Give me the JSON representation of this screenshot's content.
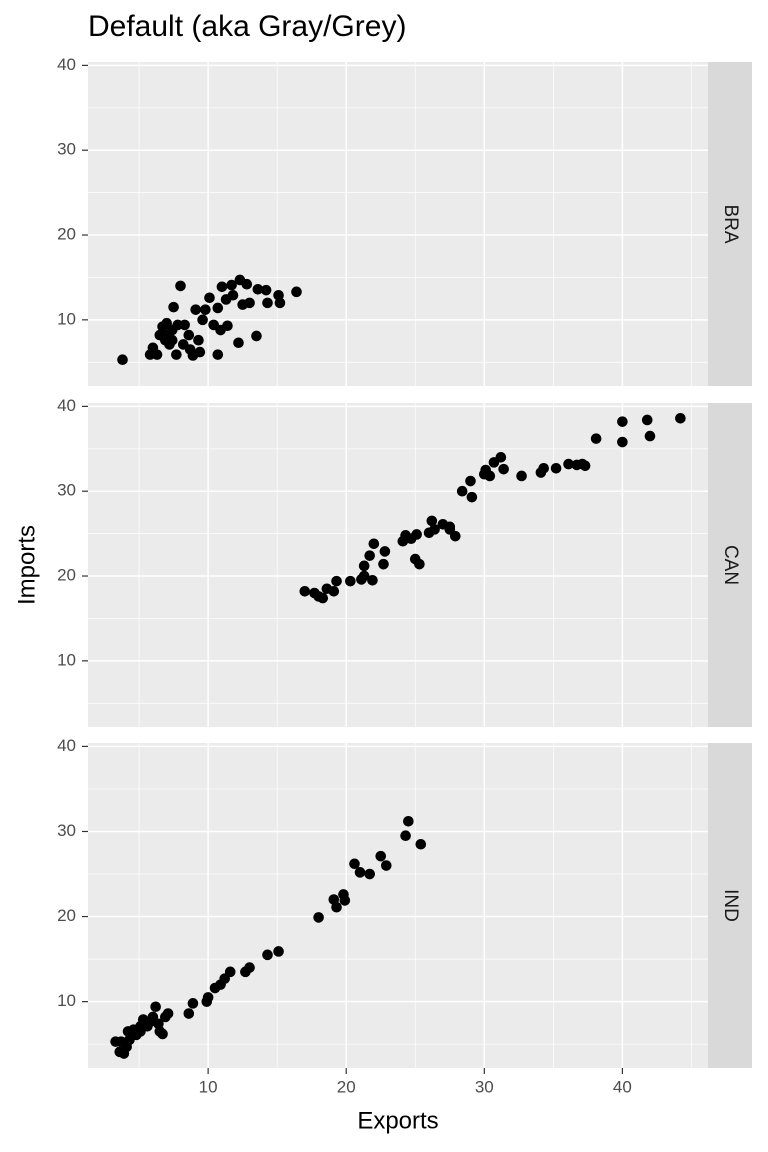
{
  "chart_data": {
    "type": "scatter",
    "title": "Default (aka Gray/Grey)",
    "xlabel": "Exports",
    "ylabel": "Imports",
    "xlim": [
      1.3,
      46.2
    ],
    "xticks": [
      10,
      20,
      30,
      40
    ],
    "ylim": [
      2.2,
      40.4
    ],
    "yticks": [
      10,
      20,
      30,
      40
    ],
    "grid": true,
    "series": [
      {
        "name": "BRA",
        "color": "#000000",
        "x": [
          3.8,
          5.8,
          6.0,
          6.3,
          6.5,
          6.7,
          6.9,
          7.0,
          7.2,
          7.4,
          7.5,
          7.7,
          7.8,
          8.0,
          8.2,
          8.3,
          8.6,
          8.7,
          8.9,
          9.1,
          9.3,
          9.4,
          9.6,
          9.8,
          10.1,
          10.4,
          10.7,
          10.7,
          10.9,
          11.0,
          11.3,
          11.4,
          11.7,
          11.8,
          12.2,
          12.3,
          12.5,
          12.8,
          13.0,
          13.5,
          13.6,
          14.2,
          14.3,
          15.1,
          15.2,
          16.4,
          6.9,
          7.4
        ],
        "values": [
          5.3,
          5.9,
          6.7,
          5.9,
          8.2,
          9.2,
          7.6,
          9.6,
          7.1,
          8.8,
          11.5,
          5.9,
          9.4,
          14.0,
          7.1,
          9.4,
          8.2,
          6.5,
          5.8,
          11.2,
          7.6,
          6.2,
          10.0,
          11.2,
          12.6,
          9.4,
          5.9,
          11.4,
          8.8,
          13.9,
          12.4,
          9.3,
          14.1,
          12.9,
          7.3,
          14.7,
          11.8,
          14.2,
          12.0,
          8.1,
          13.6,
          13.5,
          12.0,
          12.9,
          12.0,
          13.3,
          8.2,
          7.6
        ]
      },
      {
        "name": "CAN",
        "color": "#000000",
        "x": [
          17.0,
          17.7,
          18.0,
          18.3,
          18.6,
          19.1,
          19.3,
          20.3,
          21.1,
          21.3,
          21.3,
          21.7,
          21.9,
          22.0,
          22.7,
          22.8,
          24.1,
          24.3,
          24.7,
          25.0,
          25.1,
          25.3,
          26.0,
          26.2,
          26.4,
          27.0,
          27.5,
          27.5,
          27.9,
          28.4,
          29.0,
          29.1,
          30.0,
          30.1,
          30.4,
          30.7,
          31.2,
          31.4,
          32.7,
          34.1,
          34.3,
          35.2,
          36.1,
          36.7,
          37.1,
          37.3,
          38.1,
          40.0,
          40.0,
          41.8,
          42.0,
          44.2
        ],
        "values": [
          18.2,
          18.0,
          17.6,
          17.4,
          18.5,
          18.2,
          19.4,
          19.4,
          19.6,
          21.2,
          20.0,
          22.4,
          19.5,
          23.8,
          21.4,
          22.9,
          24.1,
          24.8,
          24.4,
          22.0,
          24.9,
          21.4,
          25.1,
          26.5,
          25.5,
          26.1,
          25.5,
          25.8,
          24.7,
          30.0,
          31.2,
          29.3,
          32.0,
          32.5,
          31.8,
          33.4,
          34.0,
          32.6,
          31.8,
          32.2,
          32.7,
          32.7,
          33.2,
          33.1,
          33.2,
          33.0,
          36.2,
          38.2,
          35.8,
          38.4,
          36.5,
          38.6
        ]
      },
      {
        "name": "IND",
        "color": "#000000",
        "x": [
          3.3,
          3.6,
          3.9,
          4.1,
          4.2,
          4.3,
          4.6,
          4.8,
          5.1,
          5.3,
          5.6,
          5.8,
          6.0,
          6.2,
          6.4,
          6.5,
          6.7,
          6.9,
          7.1,
          8.6,
          8.9,
          9.9,
          10.0,
          10.5,
          10.9,
          11.2,
          11.6,
          12.7,
          13.0,
          14.3,
          15.1,
          18.0,
          19.1,
          19.3,
          19.8,
          19.9,
          20.6,
          21.0,
          21.7,
          22.5,
          22.9,
          24.3,
          24.5,
          25.4,
          3.7,
          5.1
        ],
        "values": [
          5.3,
          4.1,
          3.9,
          4.7,
          6.5,
          5.5,
          6.7,
          6.1,
          7.1,
          7.9,
          7.1,
          7.6,
          8.2,
          9.4,
          7.4,
          6.5,
          6.2,
          8.2,
          8.6,
          8.6,
          9.8,
          10.0,
          10.5,
          11.6,
          12.0,
          12.7,
          13.5,
          13.5,
          14.0,
          15.5,
          15.9,
          19.9,
          22.0,
          21.1,
          22.6,
          21.9,
          26.2,
          25.2,
          25.0,
          27.1,
          26.0,
          29.5,
          31.2,
          28.5,
          5.3,
          6.5
        ]
      }
    ]
  }
}
